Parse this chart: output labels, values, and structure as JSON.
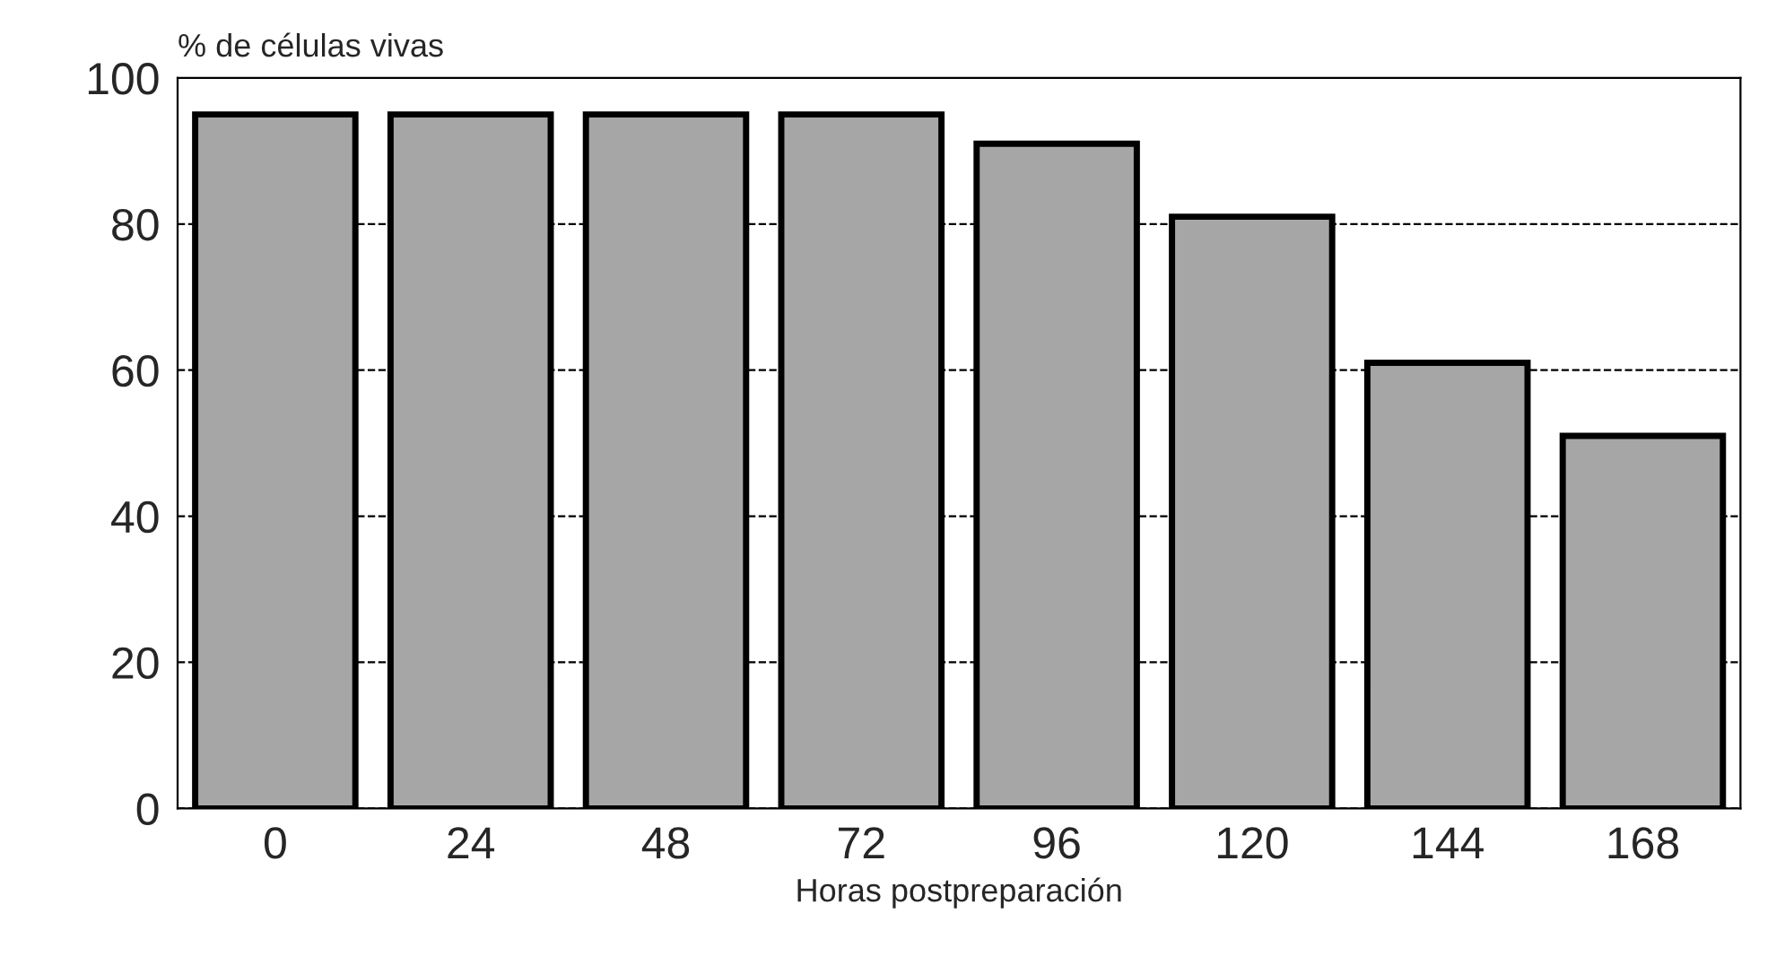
{
  "chart_data": {
    "type": "bar",
    "ylabel": "% de células vivas",
    "xlabel": "Horas postpreparación",
    "categories": [
      "0",
      "24",
      "48",
      "72",
      "96",
      "120",
      "144",
      "168"
    ],
    "values": [
      95,
      95,
      95,
      95,
      91,
      81,
      61,
      51
    ],
    "color": "#a6a6a6",
    "ylim": [
      0,
      100
    ],
    "yticks": [
      0,
      20,
      40,
      60,
      80,
      100
    ],
    "grid": "y",
    "legend": false
  }
}
